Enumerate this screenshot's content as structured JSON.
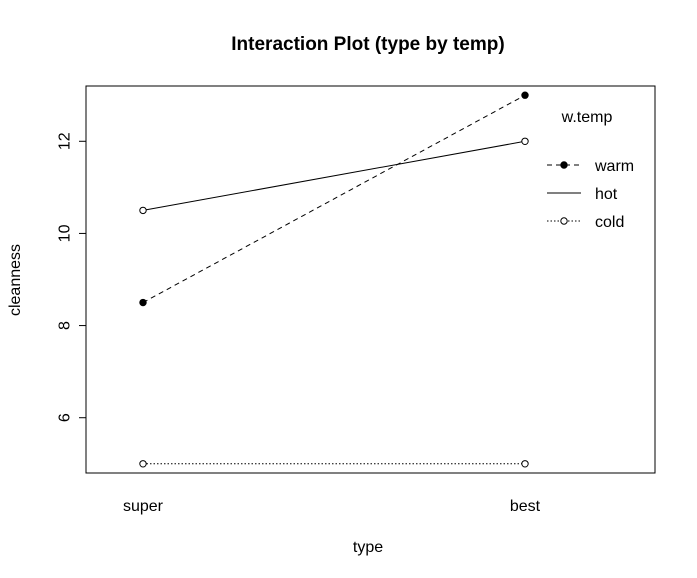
{
  "chart_data": {
    "type": "line",
    "title": "Interaction Plot (type by temp)",
    "xlabel": "type",
    "ylabel": "cleanness",
    "categories": [
      "super",
      "best"
    ],
    "y_ticks": [
      6,
      8,
      10,
      12
    ],
    "ylim": [
      4.8,
      13.2
    ],
    "grid": false,
    "legend": {
      "title": "w.temp",
      "placement": "top-right",
      "entries": [
        "warm",
        "hot",
        "cold"
      ]
    },
    "series": [
      {
        "name": "warm",
        "values": [
          8.5,
          13.0
        ],
        "line_style": "dashed",
        "marker": "filled-circle"
      },
      {
        "name": "hot",
        "values": [
          10.5,
          12.0
        ],
        "line_style": "solid",
        "marker": "open-circle"
      },
      {
        "name": "cold",
        "values": [
          5.0,
          5.0
        ],
        "line_style": "dotted",
        "marker": "open-circle"
      }
    ]
  }
}
